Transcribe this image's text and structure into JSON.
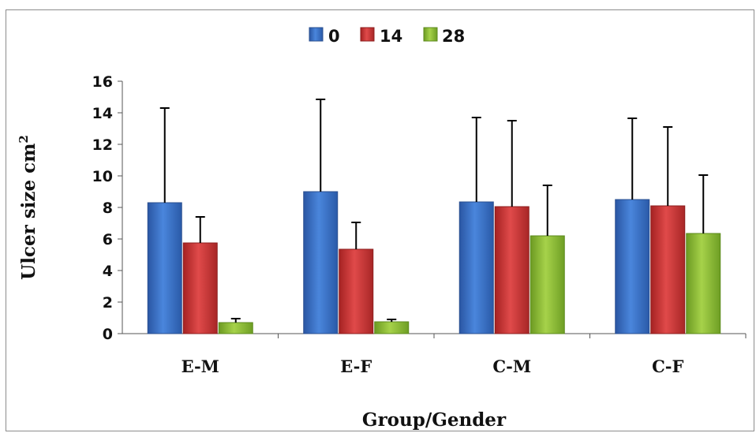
{
  "chart_data": {
    "type": "bar",
    "categories": [
      "E-M",
      "E-F",
      "C-M",
      "C-F"
    ],
    "series": [
      {
        "name": "0",
        "color": "#3f74c9",
        "values": [
          8.3,
          9.0,
          8.35,
          8.5
        ],
        "error": [
          6.0,
          5.85,
          5.35,
          5.15
        ]
      },
      {
        "name": "14",
        "color": "#d23b3b",
        "values": [
          5.75,
          5.35,
          8.05,
          8.1
        ],
        "error": [
          1.65,
          1.7,
          5.45,
          5.0
        ]
      },
      {
        "name": "28",
        "color": "#8fbd3a",
        "values": [
          0.7,
          0.75,
          6.2,
          6.35
        ],
        "error": [
          0.25,
          0.15,
          3.2,
          3.7
        ]
      }
    ],
    "title": "",
    "xlabel": "Group/Gender",
    "ylabel": "Ulcer size cm",
    "ylabel_superscript": "2",
    "ylim": [
      0,
      16
    ],
    "yticks": [
      0,
      2,
      4,
      6,
      8,
      10,
      12,
      14,
      16
    ],
    "grid": false,
    "legend": "top-center",
    "error_bars": true
  }
}
